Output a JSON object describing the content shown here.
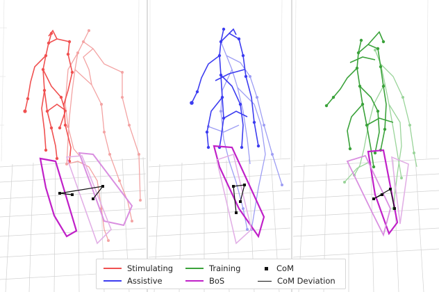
{
  "legend": {
    "stimulating": "Stimulating",
    "assistive": "Assistive",
    "training": "Training",
    "bos": "BoS",
    "com": "CoM",
    "com_deviation": "CoM Deviation"
  },
  "colors": {
    "stimulating": "#f05050",
    "assistive": "#3c3cf0",
    "training": "#3aa23a",
    "bos": "#c020c8",
    "com": "#111111",
    "com_deviation": "#111111",
    "grid": "#cfcfcf",
    "background": "#ffffff"
  },
  "panels": [
    "stimulating",
    "assistive",
    "training"
  ]
}
